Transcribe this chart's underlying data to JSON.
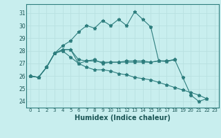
{
  "xlabel": "Humidex (Indice chaleur)",
  "ylabel": "",
  "background_color": "#c8eeee",
  "grid_color": "#b8e0e0",
  "line_color": "#2d7d7d",
  "xlim": [
    -0.5,
    23.5
  ],
  "ylim": [
    23.5,
    31.7
  ],
  "yticks": [
    24,
    25,
    26,
    27,
    28,
    29,
    30,
    31
  ],
  "xticks": [
    0,
    1,
    2,
    3,
    4,
    5,
    6,
    7,
    8,
    9,
    10,
    11,
    12,
    13,
    14,
    15,
    16,
    17,
    18,
    19,
    20,
    21,
    22,
    23
  ],
  "series": [
    [
      26.0,
      25.9,
      26.7,
      27.8,
      28.4,
      28.8,
      29.5,
      30.0,
      29.8,
      30.4,
      30.0,
      30.5,
      30.0,
      31.1,
      30.5,
      29.9,
      27.2,
      27.15,
      27.3,
      25.9,
      24.5,
      24.0,
      24.2,
      null
    ],
    [
      26.0,
      25.9,
      26.7,
      27.8,
      28.1,
      28.1,
      27.0,
      27.2,
      27.3,
      27.0,
      27.1,
      27.1,
      27.2,
      27.2,
      27.2,
      27.1,
      27.2,
      27.2,
      27.3,
      null,
      null,
      null,
      null,
      null
    ],
    [
      26.0,
      25.9,
      26.7,
      27.8,
      28.0,
      27.5,
      27.0,
      26.7,
      26.5,
      26.5,
      26.4,
      26.2,
      26.1,
      25.9,
      25.8,
      25.7,
      25.5,
      25.3,
      25.1,
      24.9,
      24.7,
      24.5,
      24.2,
      null
    ],
    [
      26.0,
      25.9,
      26.7,
      27.8,
      28.1,
      28.1,
      27.3,
      27.2,
      27.2,
      27.1,
      27.1,
      27.1,
      27.1,
      27.1,
      27.1,
      27.1,
      27.2,
      27.2,
      27.3,
      null,
      null,
      null,
      null,
      null
    ]
  ]
}
